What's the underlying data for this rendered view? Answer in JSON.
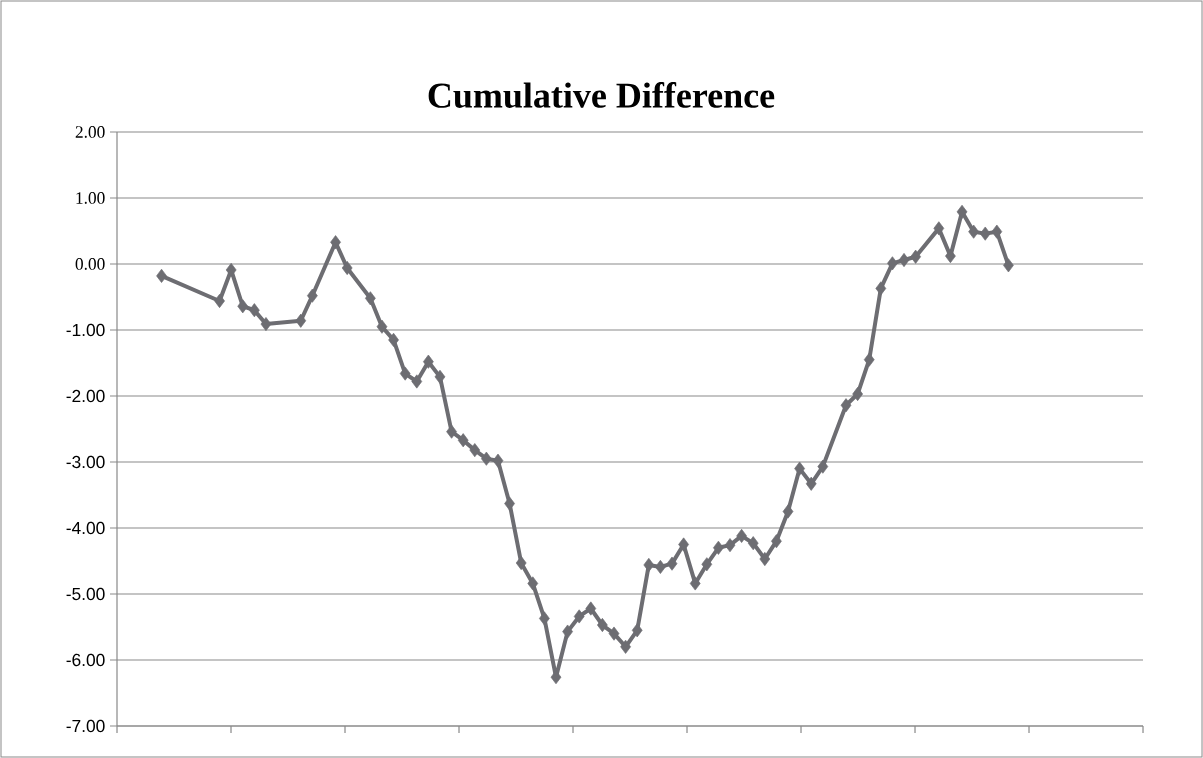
{
  "chart_data": {
    "type": "line",
    "title": "Cumulative Difference",
    "categories": [
      null,
      null,
      null,
      null,
      null,
      null,
      null,
      null,
      null,
      null,
      null,
      null,
      null,
      null,
      null,
      null,
      null,
      null,
      null,
      null,
      null,
      null,
      null,
      null,
      null,
      null,
      null,
      null,
      null,
      null,
      null,
      null,
      null,
      null,
      null,
      null,
      null,
      null,
      null,
      null,
      null,
      null,
      null,
      null,
      null,
      null,
      null,
      null,
      null,
      null,
      null,
      null,
      null,
      null,
      null,
      null,
      null,
      null,
      null,
      null,
      null,
      null,
      null,
      null,
      null,
      null,
      null,
      null,
      null,
      null,
      null,
      null,
      null,
      null,
      null,
      null,
      null,
      null,
      null,
      null,
      null,
      null,
      null,
      null,
      null,
      null,
      null,
      null
    ],
    "values": [
      null,
      null,
      null,
      -0.18,
      null,
      null,
      null,
      null,
      -0.56,
      -0.09,
      -0.64,
      -0.7,
      -0.91,
      null,
      null,
      -0.86,
      -0.48,
      null,
      0.33,
      -0.06,
      null,
      -0.52,
      -0.95,
      -1.15,
      -1.66,
      -1.78,
      -1.48,
      -1.71,
      -2.54,
      -2.67,
      -2.82,
      -2.95,
      -2.98,
      -3.63,
      -4.53,
      -4.84,
      -5.37,
      -6.26,
      -5.57,
      -5.34,
      -5.22,
      -5.47,
      -5.6,
      -5.8,
      -5.55,
      -4.56,
      -4.59,
      -4.54,
      -4.25,
      -4.84,
      -4.55,
      -4.3,
      -4.26,
      -4.12,
      -4.23,
      -4.47,
      -4.2,
      -3.75,
      -3.1,
      -3.33,
      -3.07,
      null,
      -2.14,
      -1.97,
      -1.45,
      -0.37,
      0.01,
      0.06,
      0.11,
      null,
      0.54,
      0.12,
      0.79,
      0.49,
      0.46,
      0.49,
      -0.02,
      null,
      null,
      null,
      null,
      null,
      null,
      null,
      null,
      null,
      null,
      null
    ],
    "color": "#6d6d72",
    "marker": "diamond",
    "grid": "y",
    "ylim": [
      -7,
      2
    ],
    "yticks": [
      {
        "value": -7,
        "label": "-7.00"
      },
      {
        "value": -6,
        "label": "-6.00"
      },
      {
        "value": -5,
        "label": "-5.00"
      },
      {
        "value": -4,
        "label": "-4.00"
      },
      {
        "value": -3,
        "label": "-3.00"
      },
      {
        "value": -2,
        "label": "-2.00"
      },
      {
        "value": -1,
        "label": "-1.00"
      },
      {
        "value": 0,
        "label": "0.00"
      },
      {
        "value": 1,
        "label": "1.00"
      },
      {
        "value": 2,
        "label": "2.00"
      }
    ]
  }
}
